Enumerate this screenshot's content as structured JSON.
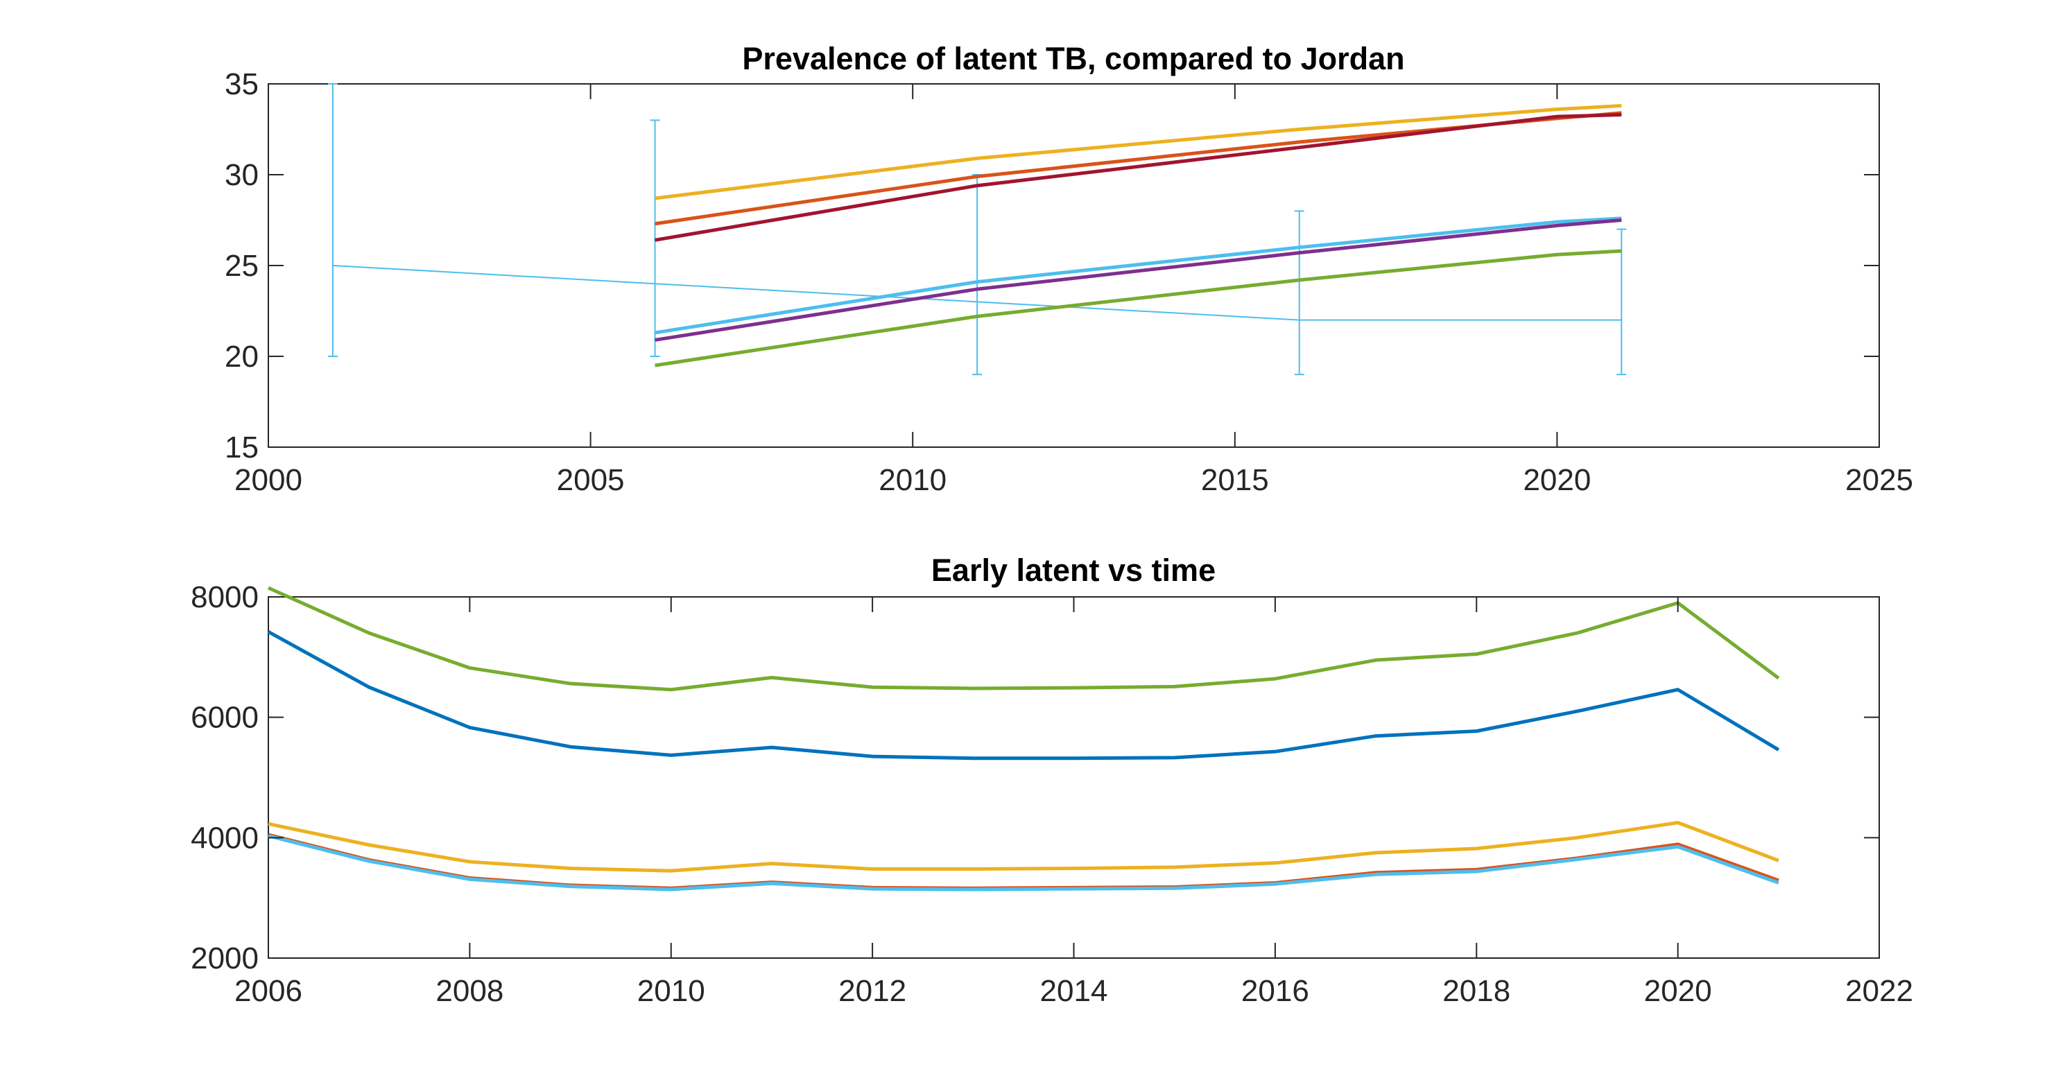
{
  "chart_data": [
    {
      "type": "line",
      "title": "Prevalence of latent TB, compared to Jordan",
      "xlabel": "",
      "ylabel": "",
      "xlim": [
        2000,
        2025
      ],
      "ylim": [
        15,
        35
      ],
      "xticks": [
        2000,
        2005,
        2010,
        2015,
        2020,
        2025
      ],
      "yticks": [
        15,
        20,
        25,
        30,
        35
      ],
      "xtick_labels": [
        "2000",
        "2005",
        "2010",
        "2015",
        "2020",
        "2025"
      ],
      "ytick_labels": [
        "15",
        "20",
        "25",
        "30",
        "35"
      ],
      "series": [
        {
          "name": "orange",
          "color": "#EDB120",
          "x": [
            2006,
            2011,
            2016,
            2020,
            2021
          ],
          "values": [
            28.7,
            30.9,
            32.5,
            33.6,
            33.8
          ]
        },
        {
          "name": "red",
          "color": "#D95319",
          "x": [
            2006,
            2011,
            2016,
            2020,
            2021
          ],
          "values": [
            27.3,
            29.9,
            31.8,
            33.1,
            33.4
          ]
        },
        {
          "name": "dark red",
          "color": "#A2142F",
          "x": [
            2006,
            2011,
            2016,
            2020,
            2021
          ],
          "values": [
            26.4,
            29.4,
            31.5,
            33.2,
            33.3
          ]
        },
        {
          "name": "light blue",
          "color": "#4DBEEE",
          "x": [
            2006,
            2011,
            2016,
            2020,
            2021
          ],
          "values": [
            21.3,
            24.1,
            26.0,
            27.4,
            27.6
          ]
        },
        {
          "name": "purple",
          "color": "#7E2F8E",
          "x": [
            2006,
            2011,
            2016,
            2020,
            2021
          ],
          "values": [
            20.9,
            23.7,
            25.7,
            27.2,
            27.5
          ]
        },
        {
          "name": "green",
          "color": "#77AC30",
          "x": [
            2006,
            2011,
            2016,
            2020,
            2021
          ],
          "values": [
            19.5,
            22.2,
            24.2,
            25.6,
            25.8
          ]
        }
      ],
      "errorbar": {
        "name": "Jordan data",
        "color": "#4DBEEE",
        "x": [
          2001,
          2006,
          2011,
          2016,
          2021
        ],
        "values": [
          25,
          24,
          23,
          22,
          22
        ],
        "lower": [
          20,
          20,
          19,
          19,
          19
        ],
        "upper": [
          35,
          33,
          30,
          28,
          27
        ]
      }
    },
    {
      "type": "line",
      "title": "Early latent vs time",
      "xlabel": "",
      "ylabel": "",
      "xlim": [
        2006,
        2022
      ],
      "ylim": [
        2000,
        8000
      ],
      "xticks": [
        2006,
        2008,
        2010,
        2012,
        2014,
        2016,
        2018,
        2020,
        2022
      ],
      "yticks": [
        2000,
        4000,
        6000,
        8000
      ],
      "xtick_labels": [
        "2006",
        "2008",
        "2010",
        "2012",
        "2014",
        "2016",
        "2018",
        "2020",
        "2022"
      ],
      "ytick_labels": [
        "2000",
        "4000",
        "6000",
        "8000"
      ],
      "x": [
        2006,
        2007,
        2008,
        2009,
        2010,
        2011,
        2012,
        2013,
        2014,
        2015,
        2016,
        2017,
        2018,
        2019,
        2020,
        2021
      ],
      "series": [
        {
          "name": "green",
          "color": "#77AC30",
          "values": [
            8150,
            7400,
            6820,
            6560,
            6460,
            6660,
            6500,
            6480,
            6490,
            6510,
            6640,
            6950,
            7050,
            7400,
            7900,
            6650
          ]
        },
        {
          "name": "blue",
          "color": "#0072BD",
          "values": [
            7420,
            6500,
            5830,
            5510,
            5370,
            5500,
            5350,
            5320,
            5320,
            5330,
            5430,
            5690,
            5770,
            6100,
            6460,
            5460
          ]
        },
        {
          "name": "orange",
          "color": "#EDB120",
          "values": [
            4230,
            3880,
            3600,
            3490,
            3450,
            3570,
            3480,
            3480,
            3490,
            3510,
            3580,
            3750,
            3820,
            4000,
            4250,
            3620
          ]
        },
        {
          "name": "red",
          "color": "#D95319",
          "values": [
            4050,
            3630,
            3330,
            3210,
            3160,
            3260,
            3170,
            3160,
            3170,
            3180,
            3250,
            3420,
            3470,
            3660,
            3890,
            3290
          ]
        },
        {
          "name": "light blue",
          "color": "#4DBEEE",
          "values": [
            4030,
            3610,
            3310,
            3190,
            3140,
            3240,
            3150,
            3140,
            3150,
            3160,
            3230,
            3390,
            3440,
            3640,
            3850,
            3250
          ]
        }
      ]
    }
  ]
}
